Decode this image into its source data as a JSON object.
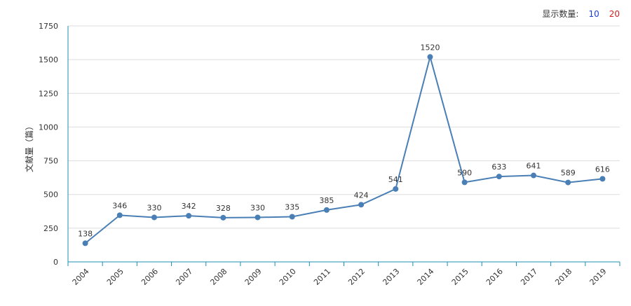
{
  "count_selector": {
    "label": "显示数量:",
    "options": [
      {
        "value": "10",
        "color": "#1a3cd6"
      },
      {
        "value": "20",
        "color": "#d42020"
      }
    ]
  },
  "colors": {
    "line": "#4a7fb5",
    "grid": "#dddddd",
    "axis": "#1d8fb0"
  },
  "chart_data": {
    "type": "line",
    "title": "",
    "xlabel": "",
    "ylabel": "文献量（篇）",
    "categories": [
      "2004",
      "2005",
      "2006",
      "2007",
      "2008",
      "2009",
      "2010",
      "2011",
      "2012",
      "2013",
      "2014",
      "2015",
      "2016",
      "2017",
      "2018",
      "2019"
    ],
    "values": [
      138,
      346,
      330,
      342,
      328,
      330,
      335,
      385,
      424,
      541,
      1520,
      590,
      633,
      641,
      589,
      616
    ],
    "ylim": [
      0,
      1750
    ],
    "yticks": [
      0,
      250,
      500,
      750,
      1000,
      1250,
      1500,
      1750
    ],
    "grid": true,
    "legend": "none"
  }
}
